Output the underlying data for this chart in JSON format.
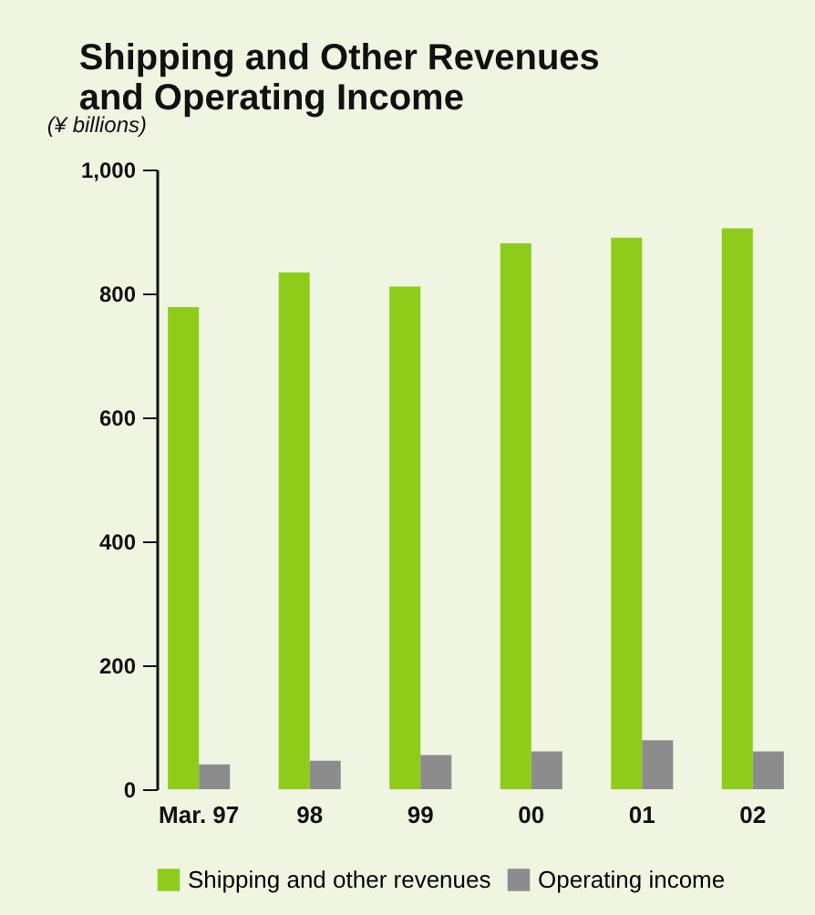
{
  "chart_data": {
    "type": "bar",
    "title": "Shipping and Other Revenues\nand Operating Income",
    "ylabel": "(¥ billions)",
    "categories": [
      "Mar. 97",
      "98",
      "99",
      "00",
      "01",
      "02"
    ],
    "series": [
      {
        "name": "Shipping and other revenues",
        "color": "#8fcc1a",
        "values": [
          778,
          834,
          811,
          881,
          890,
          905
        ]
      },
      {
        "name": "Operating income",
        "color": "#8c8c8c",
        "values": [
          40,
          46,
          55,
          61,
          79,
          61
        ]
      }
    ],
    "ylim": [
      0,
      1000
    ],
    "yticks": [
      0,
      200,
      400,
      600,
      800,
      {
        "value": 1000,
        "label": "1,000"
      }
    ],
    "grid": false,
    "legend": "bottom"
  }
}
